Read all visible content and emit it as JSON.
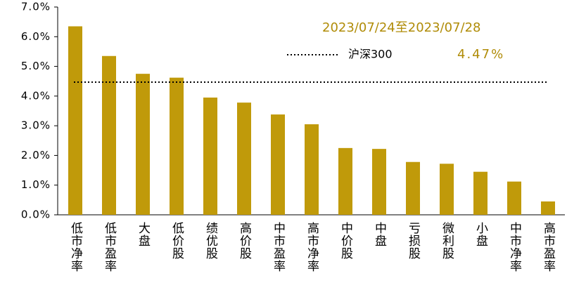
{
  "chart_data": {
    "type": "bar",
    "annotation": "2023/07/24至2023/07/28",
    "categories": [
      "低市净率",
      "低市盈率",
      "大盘",
      "低价股",
      "绩优股",
      "高价股",
      "中市盈率",
      "高市净率",
      "中价股",
      "中盘",
      "亏损股",
      "微利股",
      "小盘",
      "中市净率",
      "高市盈率"
    ],
    "values": [
      6.35,
      5.35,
      4.75,
      4.62,
      3.95,
      3.78,
      3.38,
      3.05,
      2.25,
      2.22,
      1.78,
      1.72,
      1.45,
      1.12,
      0.45
    ],
    "color": "#c09a0a",
    "ylim": [
      0,
      7
    ],
    "yticks": [
      {
        "value": 0,
        "label": "0.0%"
      },
      {
        "value": 1,
        "label": "1.0%"
      },
      {
        "value": 2,
        "label": "2.0%"
      },
      {
        "value": 3,
        "label": "3.0%"
      },
      {
        "value": 4,
        "label": "4.0%"
      },
      {
        "value": 5,
        "label": "5.0%"
      },
      {
        "value": 6,
        "label": "6.0%"
      },
      {
        "value": 7,
        "label": "7.0%"
      }
    ],
    "benchmark": {
      "name": "沪深300",
      "value": 4.47,
      "value_label": "4.47%",
      "color": "#000000"
    },
    "grid": false
  }
}
